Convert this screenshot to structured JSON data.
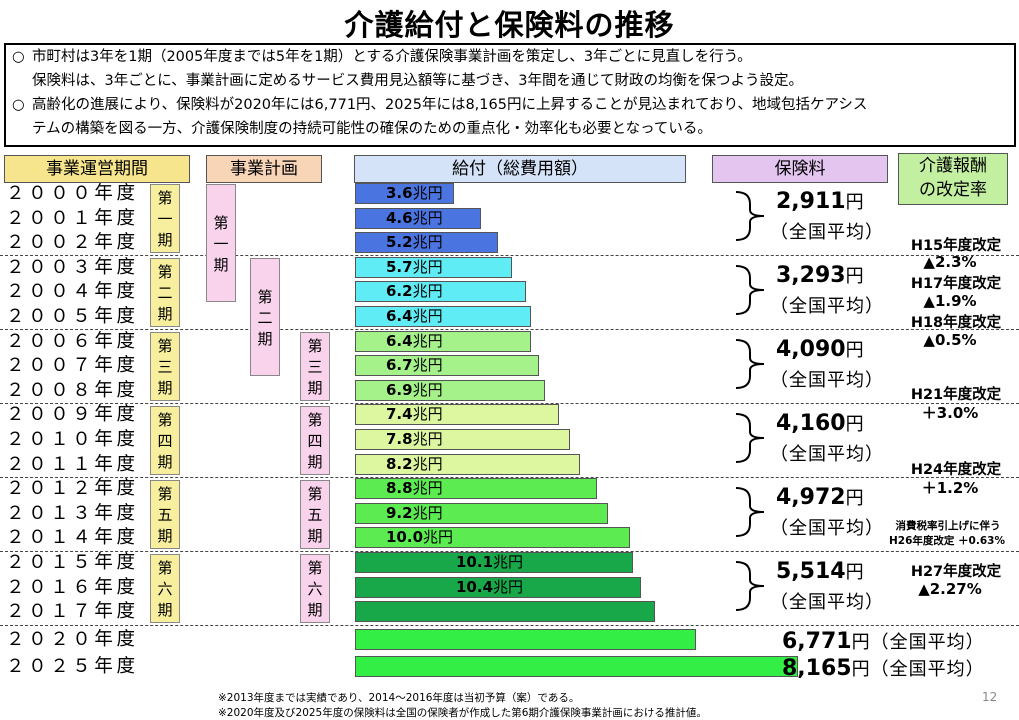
{
  "title": "介護給付と保険料の推移",
  "bullets": [
    {
      "mark": "○",
      "lines": [
        "市町村は3年を1期（2005年度までは5年を1期）とする介護保険事業計画を策定し、3年ごとに見直しを行う。",
        "保険料は、3年ごとに、事業計画に定めるサービス費用見込額等に基づき、3年間を通じて財政の均衡を保つよう設定。"
      ]
    },
    {
      "mark": "○",
      "lines": [
        "高齢化の進展により、保険料が2020年には6,771円、2025年には8,165円に上昇することが見込まれており、地域包括ケアシス",
        "テムの構築を図る一方、介護保険制度の持続可能性の確保のための重点化・効率化も必要となっている。"
      ]
    }
  ],
  "headers": {
    "period": "事業運営期間",
    "plan": "事業計画",
    "benefit": "給付（総費用額）",
    "premium": "保険料",
    "revision_line1": "介護報酬",
    "revision_line2": "の改定率"
  },
  "years": [
    "２０００年度",
    "２００１年度",
    "２００２年度",
    "２００３年度",
    "２００４年度",
    "２００５年度",
    "２００６年度",
    "２００７年度",
    "２００８年度",
    "２００９年度",
    "２０１０年度",
    "２０１１年度",
    "２０１２年度",
    "２０１３年度",
    "２０１４年度",
    "２０１５年度",
    "２０１６年度",
    "２０１７年度",
    "２０２０年度",
    "２０２５年度"
  ],
  "periods_a": [
    [
      "第",
      "一",
      "期"
    ],
    [
      "第",
      "二",
      "期"
    ],
    [
      "第",
      "三",
      "期"
    ],
    [
      "第",
      "四",
      "期"
    ],
    [
      "第",
      "五",
      "期"
    ],
    [
      "第",
      "六",
      "期"
    ]
  ],
  "plan_col1": [
    [
      "第",
      "一",
      "期"
    ]
  ],
  "plan_col2": [
    [
      "第",
      "二",
      "期"
    ]
  ],
  "plan_col3": [
    [
      "第",
      "三",
      "期"
    ],
    [
      "第",
      "四",
      "期"
    ],
    [
      "第",
      "五",
      "期"
    ],
    [
      "第",
      "六",
      "期"
    ]
  ],
  "bars": [
    {
      "num": "3.6",
      "unit": "兆円",
      "value": 3.6
    },
    {
      "num": "4.6",
      "unit": "兆円",
      "value": 4.6
    },
    {
      "num": "5.2",
      "unit": "兆円",
      "value": 5.2
    },
    {
      "num": "5.7",
      "unit": "兆円",
      "value": 5.7
    },
    {
      "num": "6.2",
      "unit": "兆円",
      "value": 6.2
    },
    {
      "num": "6.4",
      "unit": "兆円",
      "value": 6.4
    },
    {
      "num": "6.4",
      "unit": "兆円",
      "value": 6.4
    },
    {
      "num": "6.7",
      "unit": "兆円",
      "value": 6.7
    },
    {
      "num": "6.9",
      "unit": "兆円",
      "value": 6.9
    },
    {
      "num": "7.4",
      "unit": "兆円",
      "value": 7.4
    },
    {
      "num": "7.8",
      "unit": "兆円",
      "value": 7.8
    },
    {
      "num": "8.2",
      "unit": "兆円",
      "value": 8.2
    },
    {
      "num": "8.8",
      "unit": "兆円",
      "value": 8.8
    },
    {
      "num": "9.2",
      "unit": "兆円",
      "value": 9.2
    },
    {
      "num": "10.0",
      "unit": "兆円",
      "value": 10.0
    },
    {
      "num": "10.1",
      "unit": "兆円",
      "value": 10.1
    },
    {
      "num": "10.4",
      "unit": "兆円",
      "value": 10.4
    },
    {
      "num": "",
      "unit": "",
      "value": 10.9
    },
    {
      "num": "",
      "unit": "",
      "value": 12.4
    },
    {
      "num": "",
      "unit": "",
      "value": 16.1
    }
  ],
  "premiums": [
    {
      "amount": "2,911",
      "yen": "円",
      "avg": "（全国平均）"
    },
    {
      "amount": "3,293",
      "yen": "円",
      "avg": "（全国平均）"
    },
    {
      "amount": "4,090",
      "yen": "円",
      "avg": "（全国平均）"
    },
    {
      "amount": "4,160",
      "yen": "円",
      "avg": "（全国平均）"
    },
    {
      "amount": "4,972",
      "yen": "円",
      "avg": "（全国平均）"
    },
    {
      "amount": "5,514",
      "yen": "円",
      "avg": "（全国平均）"
    }
  ],
  "future_premiums": [
    {
      "amount": "6,771",
      "yen": "円",
      "avg": "（全国平均）"
    },
    {
      "amount": "8,165",
      "yen": "円",
      "avg": "（全国平均）"
    }
  ],
  "revisions": {
    "h15_label": "H15年度改定",
    "h15_value": "▲2.3%",
    "h17_label": "H17年度改定",
    "h17_value": "▲1.9%",
    "h18_label": "H18年度改定",
    "h18_value": "▲0.5%",
    "h21_label": "H21年度改定",
    "h21_value": "＋3.0%",
    "h24_label": "H24年度改定",
    "h24_value": "＋1.2%",
    "h26_note": "消費税率引上げに伴う",
    "h26_label": "H26年度改定",
    "h26_value": "＋0.63%",
    "h27_label": "H27年度改定",
    "h27_value": "▲2.27%"
  },
  "colors": {
    "period_header": "#f7e58e",
    "plan_header": "#f9d5b7",
    "benefit_header": "#d4e3f7",
    "premium_header": "#e3c5f0",
    "revision_header": "#c3f0a0",
    "period_box": "#f7ef9e",
    "plan_box": "#f9d3ec",
    "group_colors": [
      "#4a74e0",
      "#60ecf4",
      "#a6f28a",
      "#ddf7a0",
      "#5cec52",
      "#18a84a",
      "#33ee44"
    ]
  },
  "footnotes": [
    "※2013年度までは実績であり、2014～2016年度は当初予算（案）である。",
    "※2020年度及び2025年度の保険料は全国の保険者が作成した第6期介護保険事業計画における推計値。"
  ],
  "page_number": "12"
}
